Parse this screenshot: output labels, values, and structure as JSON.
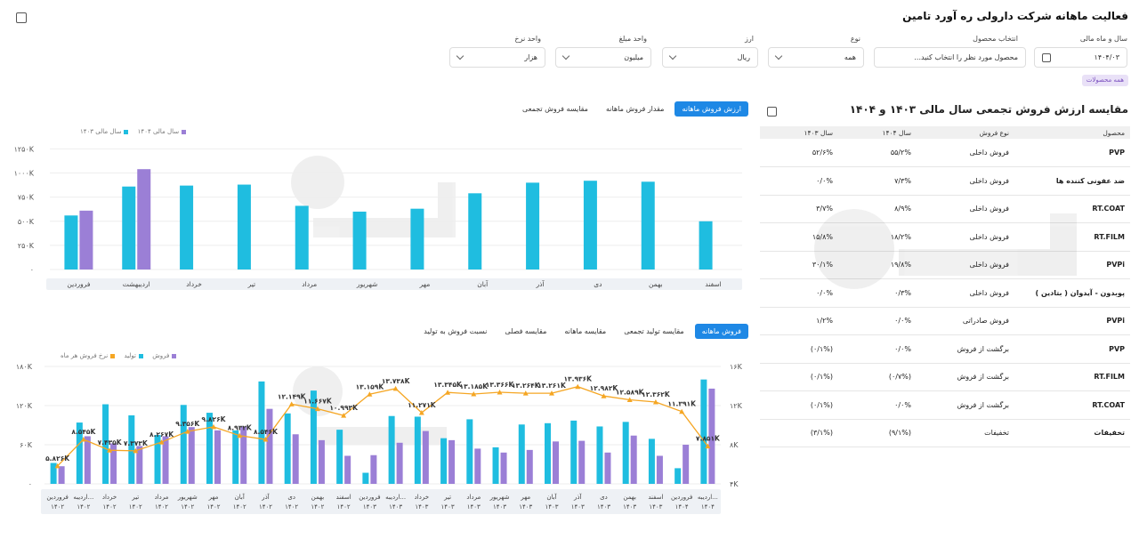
{
  "header": {
    "title": "فعالیت ماهانه شرکت دارولی ره آورد تامین",
    "corner_icon": "export-icon"
  },
  "filters": [
    {
      "label": "سال و ماه مالی",
      "value": "۱۴۰۴/۰۳",
      "icon": "calendar-icon"
    },
    {
      "label": "انتخاب محصول",
      "value": "محصول مورد نظر را انتخاب کنید...",
      "icon": ""
    },
    {
      "label": "نوع",
      "value": "همه",
      "icon": "chevron-down-icon"
    },
    {
      "label": "ارز",
      "value": "ریال",
      "icon": "chevron-down-icon"
    },
    {
      "label": "واحد مبلغ",
      "value": "میلیون",
      "icon": "chevron-down-icon"
    },
    {
      "label": "واحد نرخ",
      "value": "هزار",
      "icon": "chevron-down-icon"
    }
  ],
  "chip": "همه محصولات",
  "table_section": {
    "title": "مقایسه ارزش فروش تجمعی سال مالی ۱۴۰۳ و ۱۴۰۴",
    "headers": [
      "محصول",
      "نوع فروش",
      "سال ۱۴۰۴",
      "سال ۱۴۰۳"
    ],
    "rows": [
      [
        "PVP",
        "فروش داخلی",
        "۵۵/۲%",
        "۵۲/۶%"
      ],
      [
        "ضد عفونی کننده ها",
        "فروش داخلی",
        "۷/۳%",
        "۰/۰%"
      ],
      [
        "RT.COAT",
        "فروش داخلی",
        "۸/۹%",
        "۳/۷%"
      ],
      [
        "RT.FILM",
        "فروش داخلی",
        "۱۸/۲%",
        "۱۵/۸%"
      ],
      [
        "PVPi",
        "فروش داخلی",
        "۱۹/۸%",
        "۳۰/۱%"
      ],
      [
        "پوبدون - آیدوان ( بتادین )",
        "فروش داخلی",
        "۰/۳%",
        "۰/۰%"
      ],
      [
        "PVPi",
        "فروش صادراتی",
        "۰/۰%",
        "۱/۲%"
      ],
      [
        "PVP",
        "برگشت از فروش",
        "۰/۰%",
        "(۰/۱%)"
      ],
      [
        "RT.FILM",
        "برگشت از فروش",
        "(۰/۷%)",
        "(۰/۱%)"
      ],
      [
        "RT.COAT",
        "برگشت از فروش",
        "۰/۰%",
        "(۰/۱%)"
      ],
      [
        "تخفیفات",
        "تخفیفات",
        "(۹/۱%)",
        "(۳/۱%)"
      ]
    ]
  },
  "chart1_tabs": [
    "ارزش فروش ماهانه",
    "مقدار فروش ماهانه",
    "مقایسه فروش تجمعی"
  ],
  "chart2_tabs": [
    "فروش ماهانه",
    "مقایسه تولید تجمعی",
    "مقایسه ماهانه",
    "مقایسه فصلی",
    "نسبت فروش به تولید"
  ],
  "colors": {
    "cyan": "#1fbde0",
    "purple": "#9b7fd6",
    "orange": "#f5a623",
    "accent": "#1e88e5"
  },
  "chart_data": [
    {
      "type": "bar",
      "yticks": [
        "۰",
        "۲۵۰K",
        "۵۰۰K",
        "۷۵۰K",
        "۱۰۰۰K",
        "۱۲۵۰K"
      ],
      "ylim": [
        0,
        1300
      ],
      "categories": [
        "فروردین",
        "اردیبهشت",
        "خرداد",
        "تیر",
        "مرداد",
        "شهریور",
        "مهر",
        "آبان",
        "آذر",
        "دی",
        "بهمن",
        "اسفند"
      ],
      "series": [
        {
          "name": "سال مالی ۱۴۰۳",
          "color": "#1fbde0",
          "values": [
            560,
            860,
            870,
            880,
            660,
            600,
            630,
            790,
            900,
            920,
            910,
            500
          ]
        },
        {
          "name": "سال مالی ۱۴۰۴",
          "color": "#9b7fd6",
          "values": [
            610,
            1040,
            null,
            null,
            null,
            null,
            null,
            null,
            null,
            null,
            null,
            null
          ]
        }
      ]
    },
    {
      "type": "bar",
      "yticks_left": [
        "۰",
        "۶۰K",
        "۱۲۰K",
        "۱۸۰K"
      ],
      "ylim_left": [
        0,
        180
      ],
      "yticks_right": [
        "۴K",
        "۸K",
        "۱۲K",
        "۱۶K"
      ],
      "ylim_right": [
        4,
        16
      ],
      "categories": [
        "فروردین ۱۴۰۲",
        "اردیبه... ۱۴۰۲",
        "خرداد ۱۴۰۲",
        "تیر ۱۴۰۲",
        "مرداد ۱۴۰۲",
        "شهریور ۱۴۰۲",
        "مهر ۱۴۰۲",
        "آبان ۱۴۰۲",
        "آذر ۱۴۰۲",
        "دی ۱۴۰۲",
        "بهمن ۱۴۰۲",
        "اسفند ۱۴۰۲",
        "فروردین ۱۴۰۳",
        "اردیبه... ۱۴۰۳",
        "خرداد ۱۴۰۳",
        "تیر ۱۴۰۳",
        "مرداد ۱۴۰۳",
        "شهریور ۱۴۰۳",
        "مهر ۱۴۰۳",
        "آبان ۱۴۰۳",
        "آذر ۱۴۰۳",
        "دی ۱۴۰۳",
        "بهمن ۱۴۰۳",
        "اسفند ۱۴۰۳",
        "فروردین ۱۴۰۴",
        "اردیبه... ۱۴۰۴"
      ],
      "series": [
        {
          "name": "تولید",
          "color": "#1fbde0",
          "values": [
            32,
            94,
            122,
            105,
            75,
            121,
            109,
            82,
            157,
            108,
            143,
            83,
            17,
            104,
            103,
            70,
            99,
            56,
            91,
            93,
            97,
            88,
            95,
            69,
            24,
            160
          ]
        },
        {
          "name": "فروش",
          "color": "#9b7fd6",
          "values": [
            27,
            73,
            62,
            58,
            73,
            87,
            82,
            88,
            115,
            76,
            67,
            43,
            44,
            63,
            81,
            67,
            54,
            48,
            52,
            65,
            66,
            48,
            74,
            43,
            60,
            146
          ]
        },
        {
          "name": "نرخ فروش هر ماه",
          "color": "#f5a623",
          "axis": "right",
          "values": [
            5.826,
            8.545,
            7.435,
            7.373,
            8.267,
            9.356,
            9.826,
            8.932,
            8.546,
            12.149,
            11.667,
            10.993,
            13.159,
            13.738,
            11.271,
            13.345,
            13.185,
            13.366,
            13.264,
            13.261,
            13.936,
            12.982,
            12.589,
            12.362,
            11.391,
            7.851
          ]
        }
      ],
      "point_labels": [
        "۵.۸۲۶K",
        "۸.۵۴۵K",
        "۷.۴۳۵K",
        "۷.۳۷۳K",
        "۸.۲۶۷K",
        "۹.۳۵۶K",
        "۹.۸۲۶K",
        "۸.۹۳۲K",
        "۸.۵۴۶K",
        "۱۲.۱۴۹K",
        "۱۱.۶۶۷K",
        "۱۰.۹۹۳K",
        "۱۳.۱۵۹K",
        "۱۳.۷۳۸K",
        "۱۱.۲۷۱K",
        "۱۳.۳۴۵K",
        "۱۳.۱۸۵K",
        "۱۳.۳۶۶K",
        "۱۳.۲۶۴K",
        "۱۳.۲۶۱K",
        "۱۳.۹۳۶K",
        "۱۲.۹۸۲K",
        "۱۲.۵۸۹K",
        "۱۲.۳۶۲K",
        "۱۱.۳۹۱K",
        "۷.۸۵۱K"
      ]
    }
  ]
}
